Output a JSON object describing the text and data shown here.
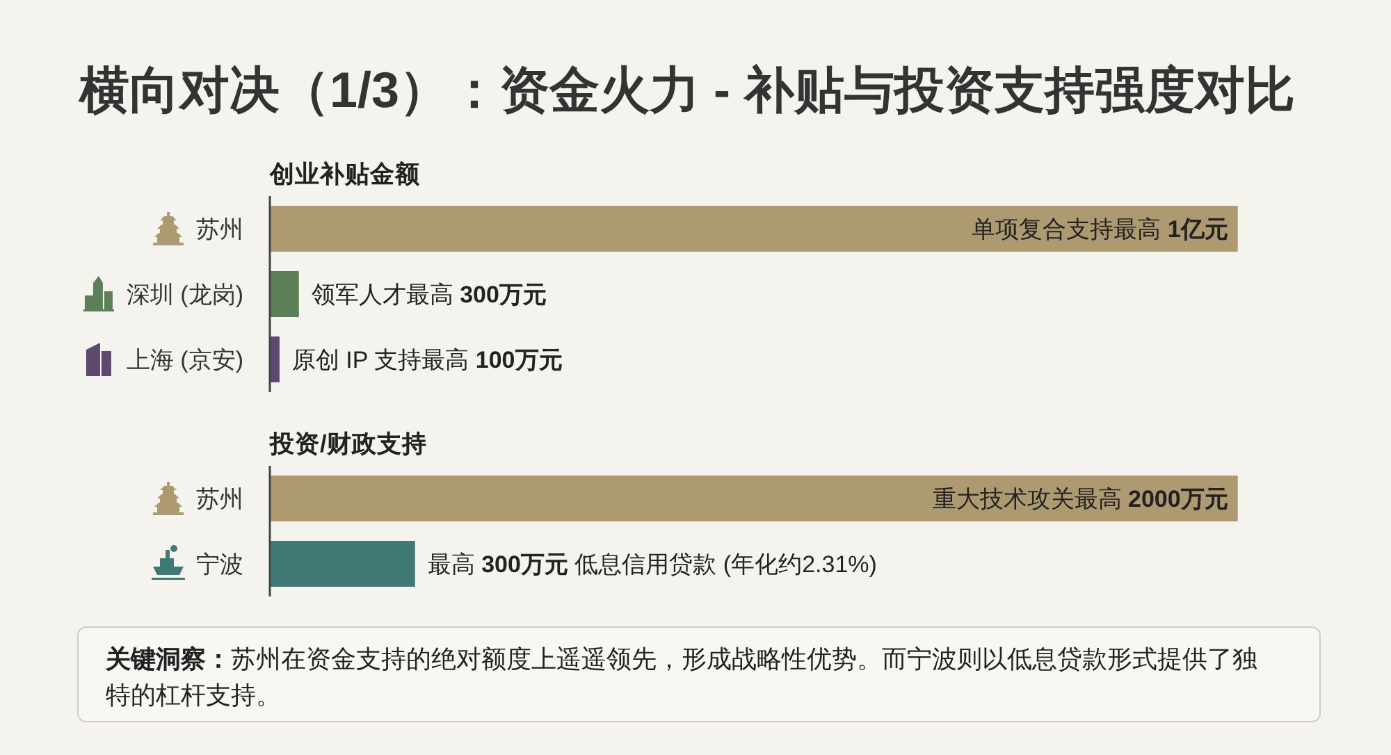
{
  "chart_data": [
    {
      "type": "bar",
      "orientation": "horizontal",
      "title": "横向对决（1/3）：资金火力 - 补贴与投资支持强度对比",
      "subtitle": "创业补贴金额",
      "categories": [
        "苏州",
        "深圳 (龙岗)",
        "上海 (京安)"
      ],
      "values": [
        10000,
        300,
        100
      ],
      "colors": [
        "#ad9a70",
        "#5b7f57",
        "#5d4870"
      ],
      "value_labels": [
        "单项复合支持最高 1亿元",
        "领军人才最高 300万元",
        "原创 IP 支持最高 100万元"
      ],
      "tick_labels": "y"
    },
    {
      "type": "bar",
      "orientation": "horizontal",
      "title": "投资/财政支持",
      "categories": [
        "苏州",
        "宁波"
      ],
      "values": [
        2000,
        300
      ],
      "colors": [
        "#ad9a70",
        "#3f7a77"
      ],
      "value_labels": [
        "重大技术攻关最高 2000万元",
        "最高 300万元 低息信用贷款 (年化约2.31%)"
      ],
      "tick_labels": "y",
      "annotations": [
        "关键洞察：苏州在资金支持的绝对额度上遥遥领先，形成战略性优势。而宁波则以低息贷款形式提供了独特的杠杆支持。"
      ]
    }
  ]
}
